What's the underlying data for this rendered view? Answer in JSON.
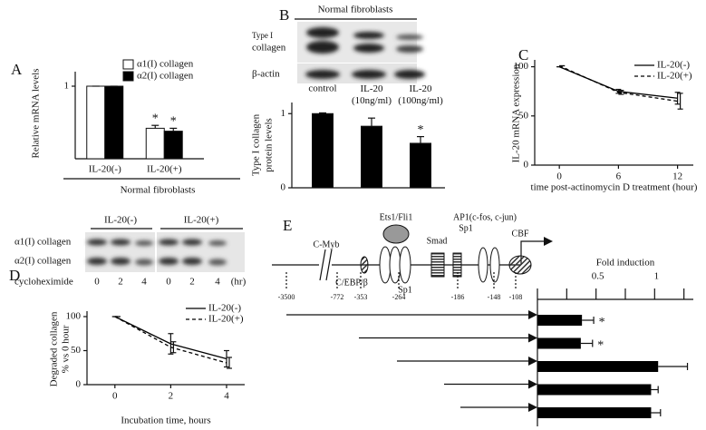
{
  "chart_data": [
    {
      "panel": "A",
      "type": "bar",
      "ylabel": [
        "Relative mRNA levels"
      ],
      "group_label": "Normal fibroblasts",
      "categories": [
        "IL-20(-)",
        "IL-20(+)"
      ],
      "series": [
        {
          "name": "α1(I) collagen",
          "color": "#ffffff",
          "values": [
            1,
            0.42
          ],
          "errors": [
            0,
            0.04
          ]
        },
        {
          "name": "α2(I) collagen",
          "color": "#000000",
          "values": [
            1,
            0.38
          ],
          "errors": [
            0,
            0.04
          ]
        }
      ],
      "annotations": [
        {
          "series": 0,
          "category": 1,
          "text": "*"
        },
        {
          "series": 1,
          "category": 1,
          "text": "*"
        }
      ],
      "ylim": [
        0,
        1.2
      ],
      "yticks": [
        1
      ],
      "legend": "top-right"
    },
    {
      "panel": "B",
      "type": "bar",
      "blot": {
        "header": "Normal fibroblasts",
        "rows": [
          [
            "Type I",
            "collagen"
          ],
          [
            "β-actin"
          ]
        ]
      },
      "ylabel": [
        "Type I collagen",
        "protein levels"
      ],
      "categories": [
        "control",
        "IL-20 (10ng/ml)",
        "IL-20 (100ng/ml)"
      ],
      "series": [
        {
          "color": "#000000",
          "values": [
            1.0,
            0.83,
            0.6
          ],
          "errors": [
            0.01,
            0.11,
            0.09
          ]
        }
      ],
      "annotations": [
        {
          "series": 0,
          "category": 2,
          "text": "*"
        }
      ],
      "ylim": [
        0,
        1.15
      ],
      "yticks": [
        0,
        1
      ]
    },
    {
      "panel": "C",
      "type": "line",
      "x": [
        0,
        6,
        12
      ],
      "series": [
        {
          "name": "IL-20(-)",
          "color": "#000000",
          "style": "solid",
          "values": [
            100,
            75,
            68
          ],
          "errors": [
            0,
            2,
            6
          ]
        },
        {
          "name": "IL-20(+)",
          "color": "#000000",
          "style": "dashed",
          "values": [
            101,
            74,
            65
          ],
          "errors": [
            0,
            2,
            8
          ]
        }
      ],
      "xlim": [
        -2.5,
        13.6
      ],
      "ylim": [
        0,
        107
      ],
      "xticks": [
        0,
        6,
        12
      ],
      "yticks": [
        0,
        50,
        100
      ],
      "xlabel": "time post-actinomycin D treatment (hour)",
      "ylabel": [
        "IL-20 mRNA expression"
      ],
      "legend": "top-right"
    },
    {
      "panel": "D",
      "type": "line",
      "blot": {
        "groups": [
          "IL-20(-)",
          "IL-20(+)"
        ],
        "rows": [
          "α1(I) collagen",
          "α2(I) collagen"
        ],
        "treatment": "cycloheximide",
        "lanes": [
          0,
          2,
          4,
          0,
          2,
          4
        ],
        "unit": "(hr)"
      },
      "x": [
        0,
        2,
        4
      ],
      "series": [
        {
          "name": "IL-20(-)",
          "color": "#000000",
          "style": "solid",
          "values": [
            100,
            60,
            38
          ],
          "errors": [
            0,
            15,
            12
          ]
        },
        {
          "name": "IL-20(+)",
          "color": "#000000",
          "style": "dashed",
          "values": [
            100,
            55,
            32
          ],
          "errors": [
            0,
            8,
            8
          ]
        }
      ],
      "xlim": [
        -1,
        4.65
      ],
      "ylim": [
        0,
        108
      ],
      "xticks": [
        0,
        2,
        4
      ],
      "yticks": [
        0,
        50,
        100
      ],
      "xlabel": "Incubation time, hours",
      "ylabel": [
        "Degraded collagen",
        "% vs 0 hour"
      ],
      "legend": "top-right"
    },
    {
      "panel": "E",
      "type": "hbar",
      "title": "Fold induction",
      "promoter": {
        "factors": [
          "C-Myb",
          "C/EBP/β",
          "Ets1/Fli1",
          "Sp1",
          "Smad",
          "AP1(c-fos, c-jun)",
          "Sp1",
          "CBF"
        ],
        "positions": [
          "-3500",
          "-772",
          "-353",
          "-264",
          "-186",
          "-148",
          "-108"
        ]
      },
      "values": [
        0.38,
        0.37,
        1.03,
        0.97,
        0.97
      ],
      "errors": [
        0.1,
        0.1,
        0.25,
        0.06,
        0.08
      ],
      "color": "#000000",
      "annotations": [
        {
          "index": 0,
          "text": "*"
        },
        {
          "index": 1,
          "text": "*"
        }
      ],
      "xlim": [
        0,
        1.33
      ],
      "xticks": [
        0.5,
        1
      ],
      "minor_xticks": [
        0.25,
        0.75,
        1.25
      ]
    }
  ]
}
